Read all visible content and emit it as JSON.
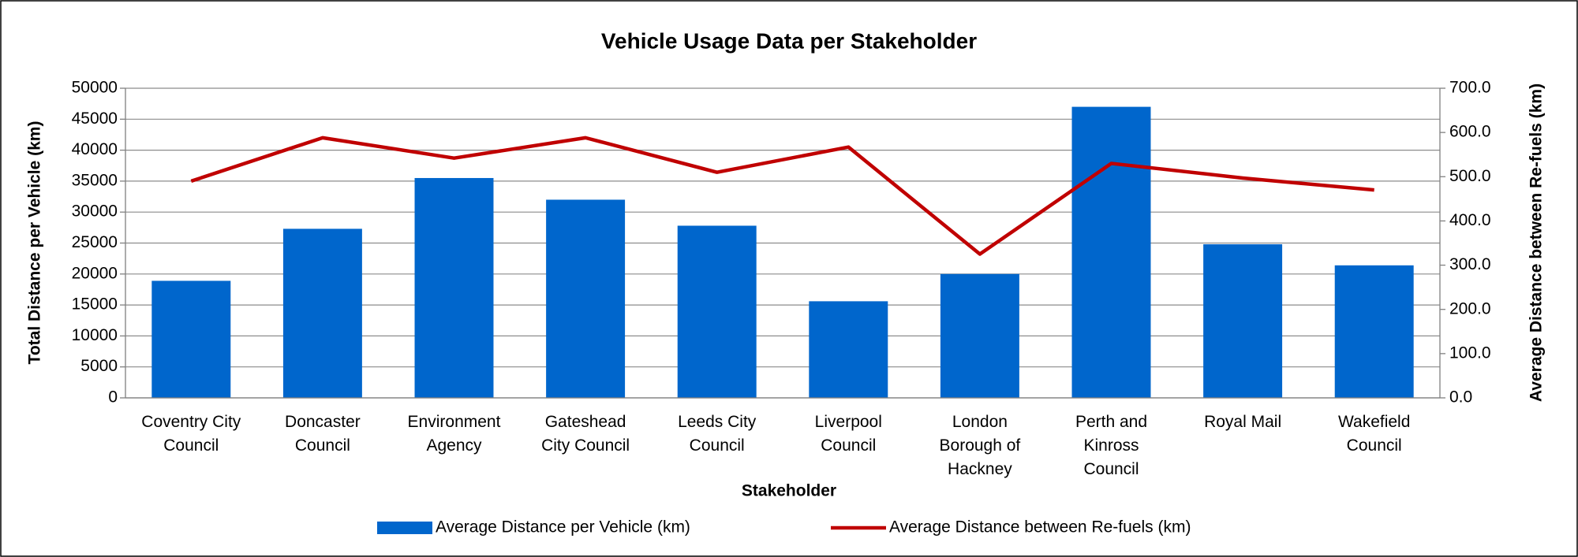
{
  "chart_data": {
    "type": "bar",
    "title": "Vehicle Usage Data per Stakeholder",
    "x_label": "Stakeholder",
    "y_label": "Total Distance  per Vehicle (km)",
    "y2_label": "Average Distance  between Re-fuels (km)",
    "categories": [
      "Coventry City Council",
      "Doncaster Council",
      "Environment Agency",
      "Gateshead City Council",
      "Leeds City Council",
      "Liverpool Council",
      "London Borough of Hackney",
      "Perth and Kinross Council",
      "Royal Mail",
      "Wakefield Council"
    ],
    "series": [
      {
        "name": "Average Distance per Vehicle (km)",
        "type": "bar",
        "color": "#0066cc",
        "values": [
          18900,
          27300,
          35500,
          32000,
          27800,
          15600,
          20000,
          47000,
          24800,
          21400
        ]
      },
      {
        "name": "Average Distance between Re-fuels (km)",
        "type": "line",
        "axis": "y2",
        "color": "#c00000",
        "values": [
          490,
          588,
          542,
          588,
          510,
          567,
          325,
          530,
          497,
          470
        ]
      }
    ],
    "ylim": [
      0,
      50000
    ],
    "yticks": [
      0,
      5000,
      10000,
      15000,
      20000,
      25000,
      30000,
      35000,
      40000,
      45000,
      50000
    ],
    "y2lim": [
      0,
      700
    ],
    "y2ticks": [
      {
        "value": 0,
        "label": "0.0"
      },
      {
        "value": 100,
        "label": "100.0"
      },
      {
        "value": 200,
        "label": "200.0"
      },
      {
        "value": 300,
        "label": "300.0"
      },
      {
        "value": 400,
        "label": "400.0"
      },
      {
        "value": 500,
        "label": "500.0"
      },
      {
        "value": 600,
        "label": "600.0"
      },
      {
        "value": 700,
        "label": "700.0"
      }
    ],
    "grid": true,
    "legend": "bottom"
  }
}
